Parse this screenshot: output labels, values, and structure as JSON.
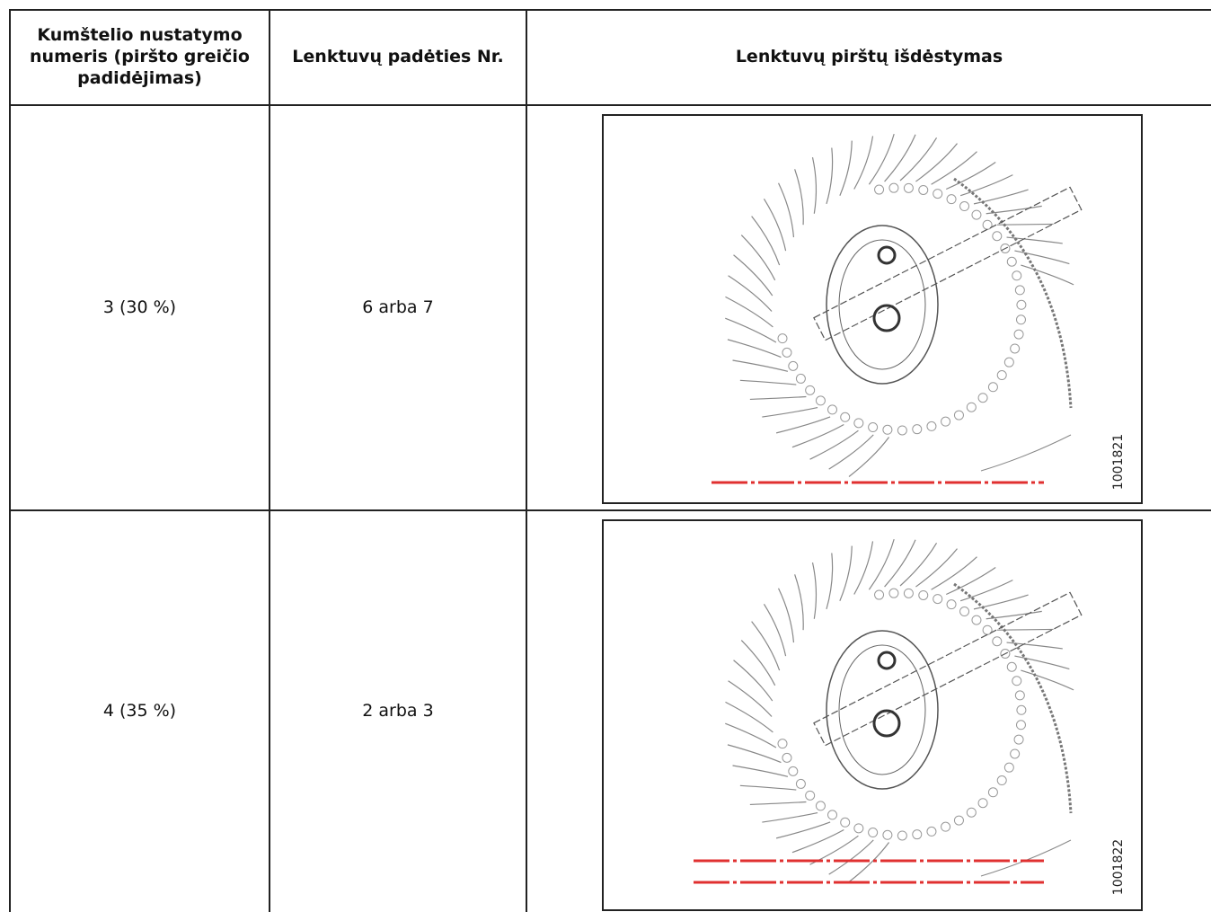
{
  "table": {
    "header": [
      "Kumštelio nustatymo numeris (piršto greičio padidėjimas)",
      "Lenktuvų padėties Nr.",
      "Lenktuvų pirštų išdėstymas"
    ],
    "rows": [
      {
        "cells": [
          "3 (30 %)",
          "6 arba 7"
        ],
        "figure_id": "1001821"
      },
      {
        "cells": [
          "4 (35 %)",
          "2 arba 3"
        ],
        "figure_id": "1001822"
      }
    ]
  }
}
